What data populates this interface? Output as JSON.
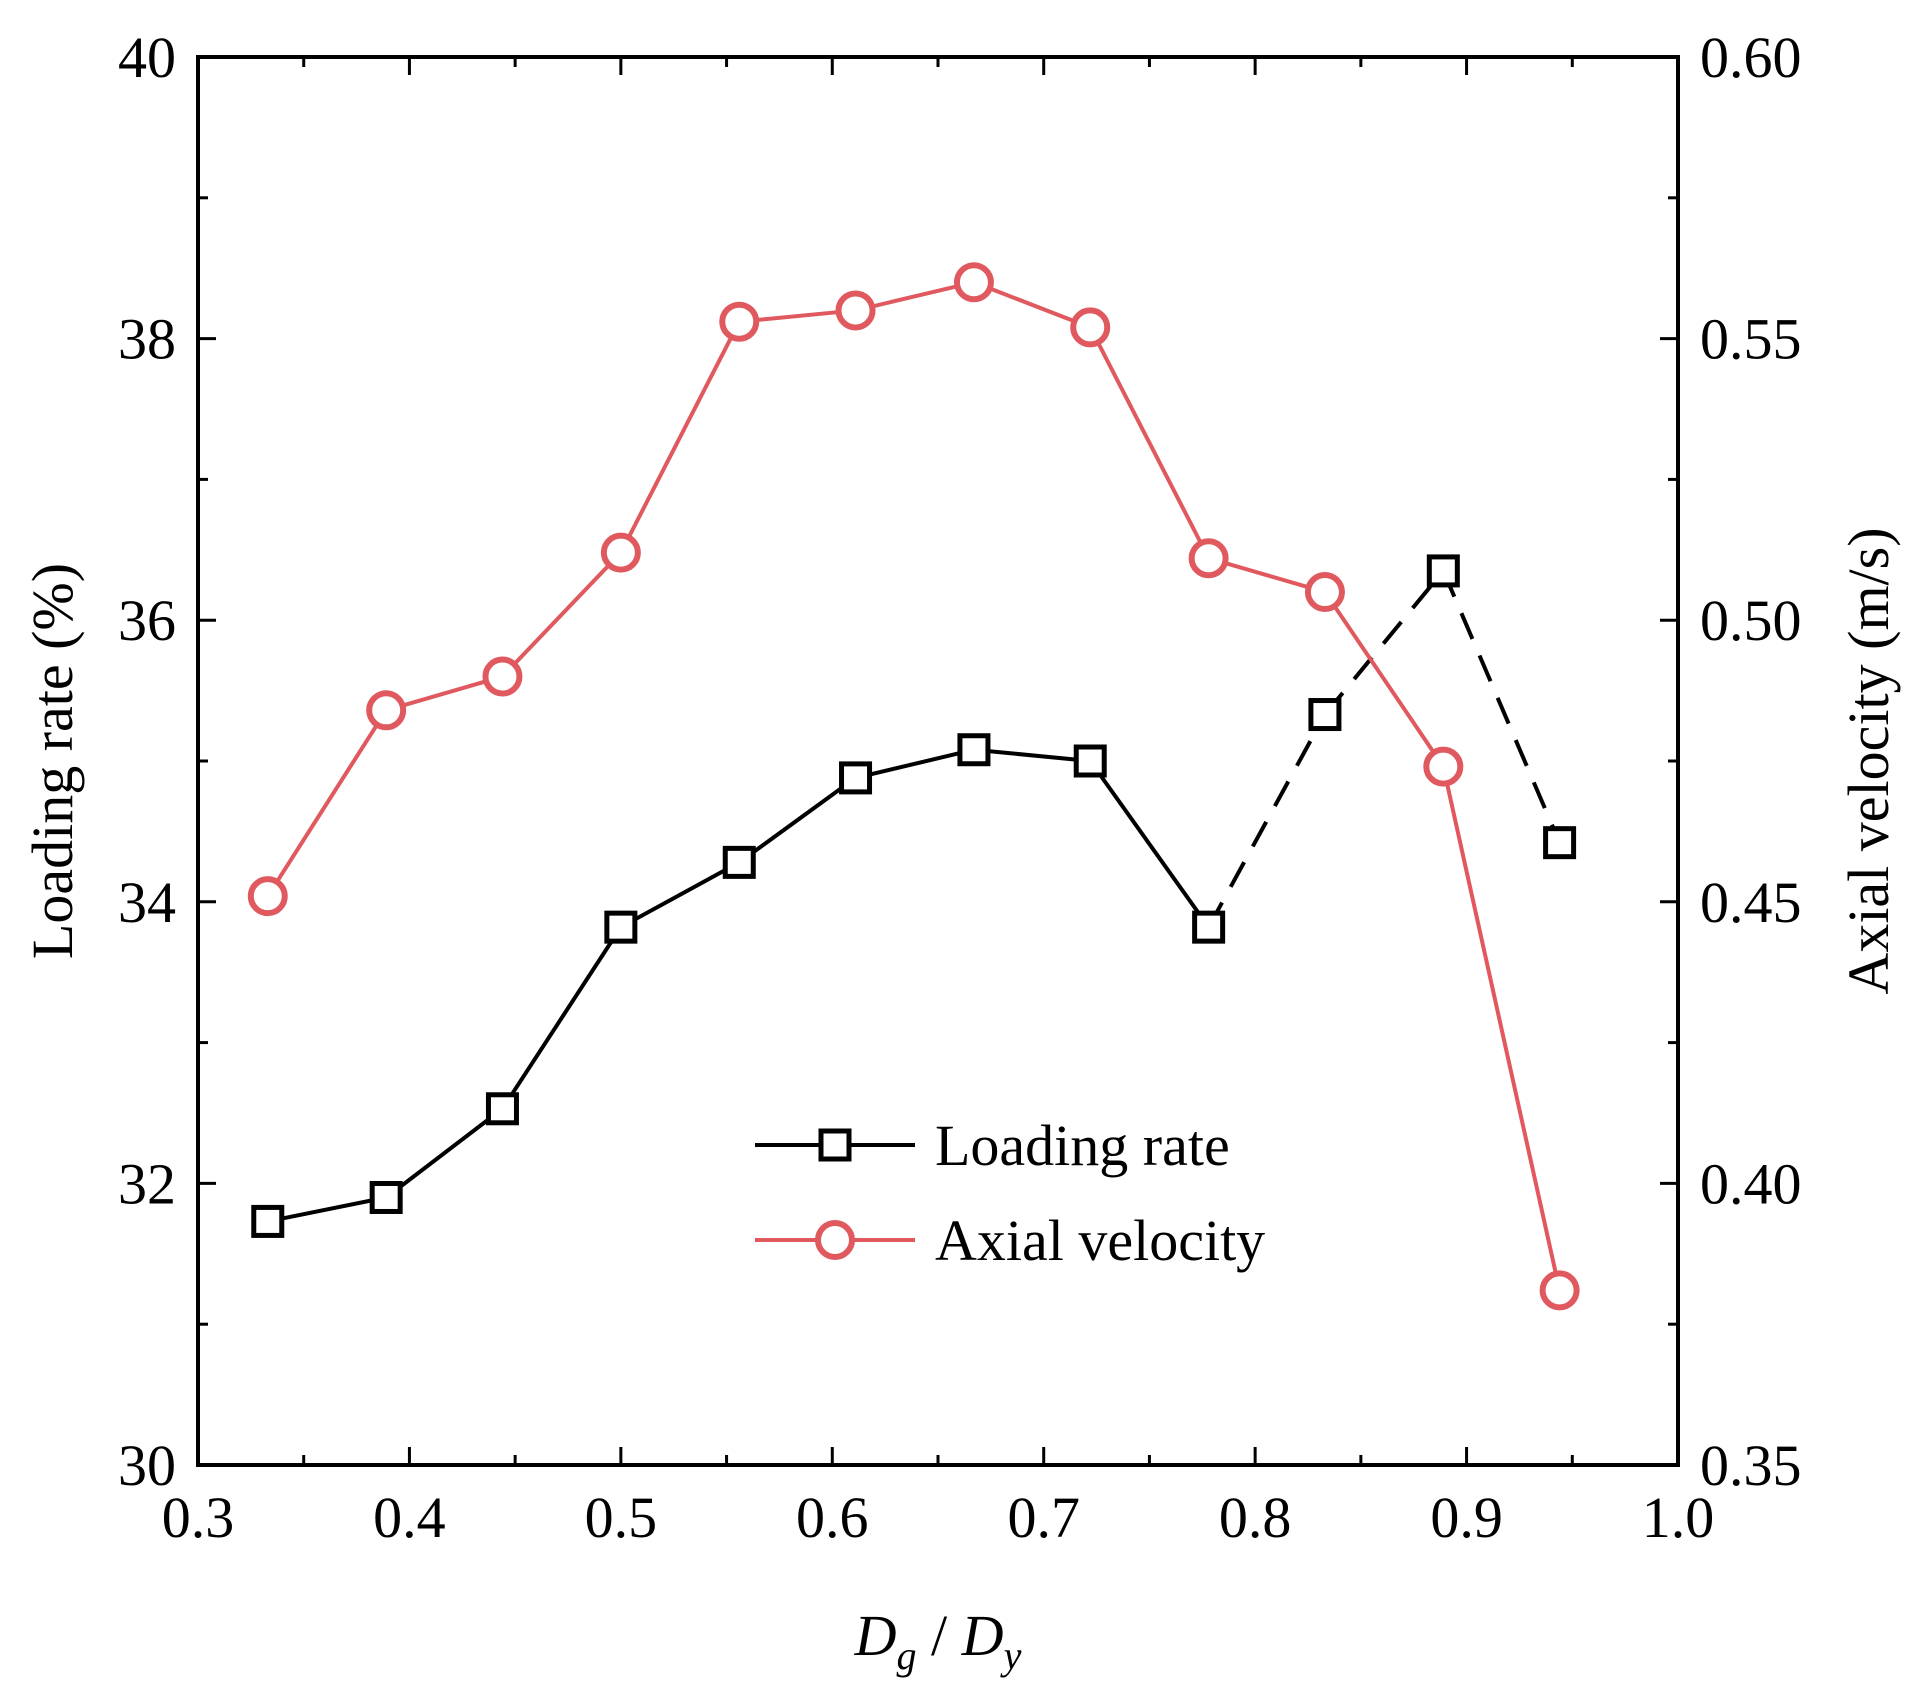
{
  "chart_data": {
    "type": "line",
    "x": [
      0.333,
      0.389,
      0.444,
      0.5,
      0.556,
      0.611,
      0.667,
      0.722,
      0.778,
      0.833,
      0.889,
      0.944
    ],
    "xlabel": {
      "main_a": "D",
      "sub_a": "g",
      "sep": " / ",
      "main_b": "D",
      "sub_b": "y"
    },
    "ylabel_left": "Loading rate (%)",
    "ylabel_right": "Axial velocity (m/s)",
    "xlim": [
      0.3,
      1.0
    ],
    "ylim_left": [
      30,
      40
    ],
    "ylim_right": [
      0.35,
      0.6
    ],
    "x_ticks": [
      0.3,
      0.4,
      0.5,
      0.6,
      0.7,
      0.8,
      0.9,
      1.0
    ],
    "x_tick_labels": [
      "0.3",
      "0.4",
      "0.5",
      "0.6",
      "0.7",
      "0.8",
      "0.9",
      "1.0"
    ],
    "y_left_ticks": [
      30,
      32,
      34,
      36,
      38,
      40
    ],
    "y_left_tick_labels": [
      "30",
      "32",
      "34",
      "36",
      "38",
      "40"
    ],
    "y_right_ticks": [
      0.35,
      0.4,
      0.45,
      0.5,
      0.55,
      0.6
    ],
    "y_right_tick_labels": [
      "0.35",
      "0.40",
      "0.45",
      "0.50",
      "0.55",
      "0.60"
    ],
    "grid": false,
    "legend_position": "bottom-center",
    "series": [
      {
        "name": "Loading rate",
        "axis": "left",
        "marker": "square",
        "color": "#000000",
        "dashed_from_index": 8,
        "values": [
          31.73,
          31.9,
          32.53,
          33.82,
          34.28,
          34.88,
          35.08,
          35.0,
          33.82,
          35.33,
          36.35,
          34.42
        ]
      },
      {
        "name": "Axial velocity",
        "axis": "right",
        "marker": "circle",
        "color": "#e0595e",
        "values": [
          0.451,
          0.484,
          0.49,
          0.512,
          0.553,
          0.555,
          0.56,
          0.552,
          0.511,
          0.505,
          0.474,
          0.381
        ]
      }
    ]
  }
}
